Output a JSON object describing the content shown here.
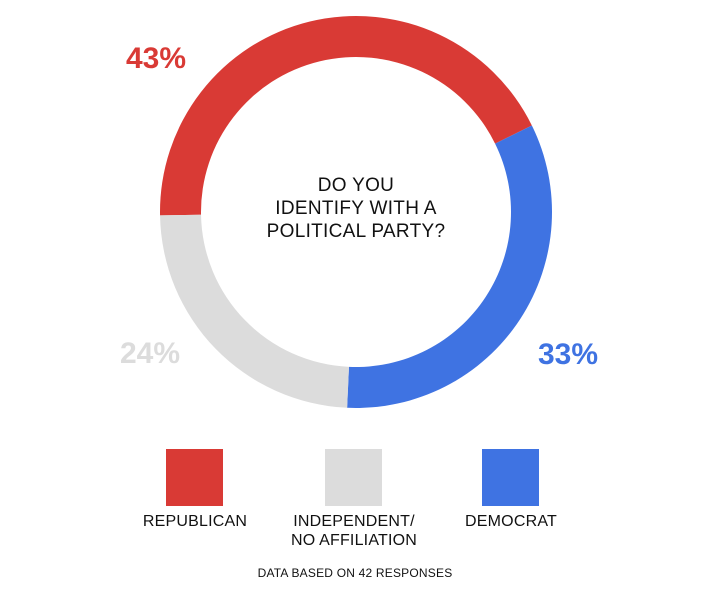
{
  "chart_data": {
    "type": "pie",
    "title_lines": [
      "DO YOU",
      "IDENTIFY WITH A",
      "POLITICAL PARTY?"
    ],
    "donut": true,
    "slices": [
      {
        "label": "REPUBLICAN",
        "value": 43,
        "value_label": "43%",
        "color": "#d93a35"
      },
      {
        "label": "DEMOCRAT",
        "value": 33,
        "value_label": "33%",
        "color": "#3f73e2"
      },
      {
        "label": "INDEPENDENT/ NO AFFILIATION",
        "value": 24,
        "value_label": "24%",
        "color": "#dcdcdc"
      }
    ],
    "legend": [
      {
        "lines": [
          "REPUBLICAN"
        ],
        "color": "#d93a35"
      },
      {
        "lines": [
          "INDEPENDENT/",
          "NO AFFILIATION"
        ],
        "color": "#dcdcdc"
      },
      {
        "lines": [
          "DEMOCRAT"
        ],
        "color": "#3f73e2"
      }
    ],
    "footnote": "DATA BASED ON 42 RESPONSES"
  }
}
